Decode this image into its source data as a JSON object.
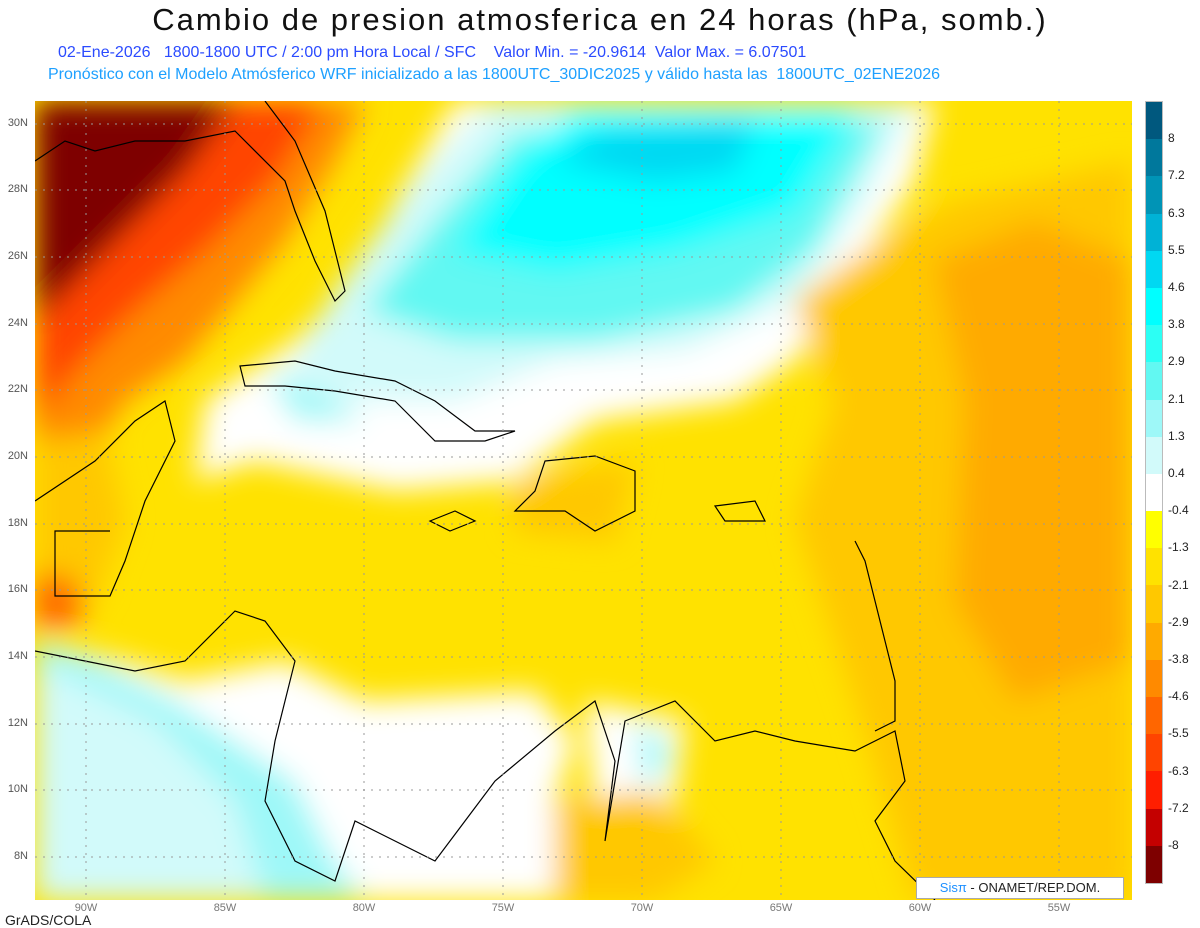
{
  "header": {
    "title": "Cambio de presion atmosferica en 24 horas (hPa, somb.)",
    "subtitle1": "02-Ene-2026   1800-1800 UTC / 2:00 pm Hora Local / SFC    Valor Min. = -20.9614  Valor Max. = 6.07501",
    "subtitle2": "Pronóstico con el Modelo Atmósferico WRF inicializado a las 1800UTC_30DIC2025 y válido hasta las  1800UTC_02ENE2026"
  },
  "axes": {
    "lat_labels": [
      "30N",
      "28N",
      "26N",
      "24N",
      "22N",
      "20N",
      "18N",
      "16N",
      "14N",
      "12N",
      "10N",
      "8N"
    ],
    "lon_labels": [
      "90W",
      "85W",
      "80W",
      "75W",
      "70W",
      "65W",
      "60W",
      "55W"
    ]
  },
  "colorbar": {
    "labels": [
      "8",
      "7.2",
      "6.3",
      "5.5",
      "4.6",
      "3.8",
      "2.9",
      "2.1",
      "1.3",
      "0.4",
      "-0.4",
      "-1.3",
      "-2.1",
      "-2.9",
      "-3.8",
      "-4.6",
      "-5.5",
      "-6.3",
      "-7.2",
      "-8"
    ],
    "colors": [
      "#00587e",
      "#00789c",
      "#0094b6",
      "#00b2d6",
      "#00d8f2",
      "#00ffff",
      "#2cfff4",
      "#62f8f2",
      "#9ef8f8",
      "#d2fafa",
      "#ffffff",
      "#ffff00",
      "#ffe200",
      "#ffc800",
      "#ffaa00",
      "#ff8a00",
      "#ff6600",
      "#ff4400",
      "#ff1e00",
      "#c40000",
      "#7e0000"
    ]
  },
  "credits": {
    "grads": "GrADS/COLA",
    "logo_brand": "Sisπ",
    "logo_text": " - ONAMET/REP.DOM."
  }
}
